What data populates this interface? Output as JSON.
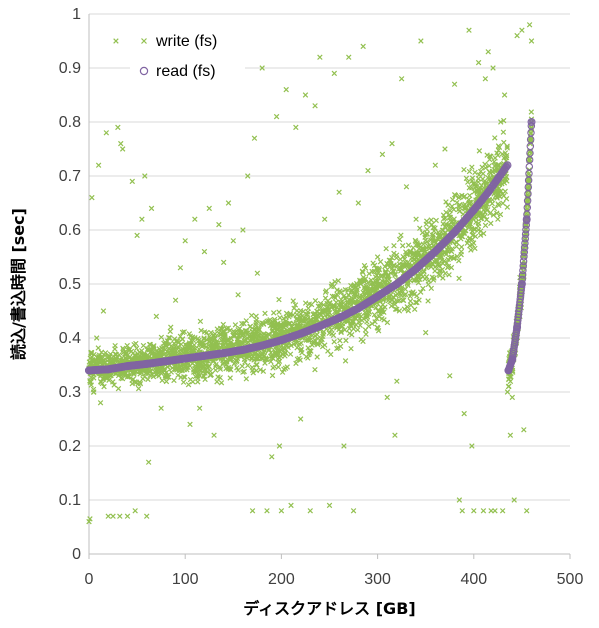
{
  "chart_data": {
    "type": "scatter",
    "title": "",
    "xlabel": "ディスクアドレス [GB]",
    "ylabel": "読込/書込時間 [sec]",
    "xlim": [
      0,
      500
    ],
    "ylim": [
      0,
      1
    ],
    "xticks": [
      "0",
      "100",
      "200",
      "300",
      "400",
      "500"
    ],
    "yticks": [
      "0",
      "0.1",
      "0.2",
      "0.3",
      "0.4",
      "0.5",
      "0.6",
      "0.7",
      "0.8",
      "0.9",
      "1"
    ],
    "grid": "horizontal",
    "legend_position": "top-left",
    "series": [
      {
        "name": "write (fs)",
        "marker": "x",
        "color": "#92c050",
        "description_points": "dense band following read curve with wide spread; sparse outliers",
        "points": [
          [
            0,
            0.06
          ],
          [
            1,
            0.065
          ],
          [
            3,
            0.66
          ],
          [
            5,
            0.3
          ],
          [
            8,
            0.4
          ],
          [
            10,
            0.72
          ],
          [
            12,
            0.28
          ],
          [
            15,
            0.45
          ],
          [
            18,
            0.78
          ],
          [
            20,
            0.07
          ],
          [
            22,
            0.33
          ],
          [
            25,
            0.07
          ],
          [
            28,
            0.95
          ],
          [
            30,
            0.79
          ],
          [
            32,
            0.07
          ],
          [
            33,
            0.76
          ],
          [
            35,
            0.75
          ],
          [
            40,
            0.07
          ],
          [
            45,
            0.69
          ],
          [
            48,
            0.08
          ],
          [
            50,
            0.59
          ],
          [
            55,
            0.62
          ],
          [
            58,
            0.7
          ],
          [
            60,
            0.07
          ],
          [
            62,
            0.17
          ],
          [
            65,
            0.64
          ],
          [
            70,
            0.44
          ],
          [
            75,
            0.27
          ],
          [
            80,
            0.33
          ],
          [
            85,
            0.42
          ],
          [
            90,
            0.47
          ],
          [
            95,
            0.53
          ],
          [
            100,
            0.58
          ],
          [
            105,
            0.24
          ],
          [
            110,
            0.62
          ],
          [
            115,
            0.27
          ],
          [
            120,
            0.56
          ],
          [
            125,
            0.64
          ],
          [
            130,
            0.22
          ],
          [
            135,
            0.61
          ],
          [
            140,
            0.54
          ],
          [
            145,
            0.65
          ],
          [
            150,
            0.58
          ],
          [
            155,
            0.48
          ],
          [
            160,
            0.6
          ],
          [
            165,
            0.7
          ],
          [
            170,
            0.08
          ],
          [
            172,
            0.77
          ],
          [
            175,
            0.52
          ],
          [
            180,
            0.9
          ],
          [
            185,
            0.08
          ],
          [
            190,
            0.18
          ],
          [
            195,
            0.81
          ],
          [
            198,
            0.2
          ],
          [
            200,
            0.08
          ],
          [
            205,
            0.86
          ],
          [
            210,
            0.09
          ],
          [
            215,
            0.79
          ],
          [
            220,
            0.25
          ],
          [
            225,
            0.85
          ],
          [
            230,
            0.08
          ],
          [
            235,
            0.83
          ],
          [
            240,
            0.92
          ],
          [
            245,
            0.62
          ],
          [
            250,
            0.09
          ],
          [
            255,
            0.89
          ],
          [
            260,
            0.67
          ],
          [
            265,
            0.2
          ],
          [
            270,
            0.92
          ],
          [
            275,
            0.08
          ],
          [
            280,
            0.65
          ],
          [
            285,
            0.94
          ],
          [
            290,
            0.71
          ],
          [
            300,
            0.55
          ],
          [
            305,
            0.74
          ],
          [
            310,
            0.29
          ],
          [
            315,
            0.76
          ],
          [
            318,
            0.22
          ],
          [
            320,
            0.32
          ],
          [
            325,
            0.88
          ],
          [
            330,
            0.68
          ],
          [
            340,
            0.62
          ],
          [
            345,
            0.95
          ],
          [
            350,
            0.41
          ],
          [
            360,
            0.72
          ],
          [
            370,
            0.75
          ],
          [
            375,
            0.33
          ],
          [
            380,
            0.87
          ],
          [
            385,
            0.1
          ],
          [
            388,
            0.08
          ],
          [
            390,
            0.26
          ],
          [
            395,
            0.97
          ],
          [
            398,
            0.2
          ],
          [
            400,
            0.08
          ],
          [
            405,
            0.91
          ],
          [
            410,
            0.08
          ],
          [
            412,
            0.88
          ],
          [
            415,
            0.93
          ],
          [
            418,
            0.08
          ],
          [
            420,
            0.9
          ],
          [
            422,
            0.08
          ],
          [
            425,
            0.62
          ],
          [
            428,
            0.8
          ],
          [
            430,
            0.08
          ],
          [
            432,
            0.85
          ],
          [
            435,
            0.3
          ],
          [
            438,
            0.22
          ],
          [
            440,
            0.29
          ],
          [
            442,
            0.1
          ],
          [
            445,
            0.96
          ],
          [
            448,
            0.44
          ],
          [
            450,
            0.97
          ],
          [
            452,
            0.23
          ],
          [
            455,
            0.08
          ],
          [
            458,
            0.98
          ],
          [
            460,
            0.95
          ]
        ]
      },
      {
        "name": "read (fs)",
        "marker": "o",
        "color": "#8064a2",
        "description_points": "smooth curve rising from 0.34 to 0.72 over 0-435 GB, drops to 0.34 and rises steeply to 0.80 by 460 GB",
        "points": [
          [
            0,
            0.34
          ],
          [
            20,
            0.342
          ],
          [
            40,
            0.348
          ],
          [
            60,
            0.352
          ],
          [
            80,
            0.357
          ],
          [
            100,
            0.362
          ],
          [
            120,
            0.367
          ],
          [
            140,
            0.372
          ],
          [
            160,
            0.378
          ],
          [
            180,
            0.386
          ],
          [
            200,
            0.396
          ],
          [
            220,
            0.408
          ],
          [
            240,
            0.422
          ],
          [
            260,
            0.437
          ],
          [
            280,
            0.455
          ],
          [
            300,
            0.477
          ],
          [
            320,
            0.5
          ],
          [
            340,
            0.528
          ],
          [
            360,
            0.56
          ],
          [
            380,
            0.596
          ],
          [
            400,
            0.637
          ],
          [
            415,
            0.67
          ],
          [
            425,
            0.695
          ],
          [
            435,
            0.72
          ],
          [
            436,
            0.34
          ],
          [
            440,
            0.36
          ],
          [
            445,
            0.42
          ],
          [
            450,
            0.5
          ],
          [
            455,
            0.62
          ],
          [
            460,
            0.8
          ]
        ]
      }
    ]
  }
}
